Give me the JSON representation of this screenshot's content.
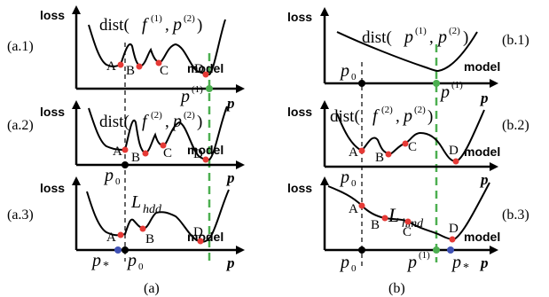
{
  "axes": {
    "y_label": "loss",
    "x_label": "model",
    "x_symbol": "p"
  },
  "colors": {
    "curve": "#000000",
    "point_red": "#e53935",
    "point_black": "#000000",
    "point_green": "#4caf50",
    "point_blue": "#3f51b5",
    "guide_green": "#4caf50"
  },
  "panels": {
    "a1": {
      "tag": "(a.1)",
      "dist_label": "dist(",
      "dist_f": "f",
      "dist_f_sup": "(1)",
      "dist_sep": ", ",
      "dist_p": "p",
      "dist_p_sup": "(2)",
      "dist_close": ")"
    },
    "a2": {
      "tag": "(a.2)",
      "dist_label": "dist(",
      "dist_f": "f",
      "dist_f_sup": "(2)",
      "dist_sep": ", ",
      "dist_p": "p",
      "dist_p_sup": "(2)",
      "dist_close": ")"
    },
    "a3": {
      "tag": "(a.3)",
      "loss_symbol": "L",
      "loss_sub": "hdd"
    },
    "b1": {
      "tag": "(b.1)",
      "dist_label": "dist(",
      "dist_f": "p",
      "dist_f_sup": "(1)",
      "dist_sep": ", ",
      "dist_p": "p",
      "dist_p_sup": "(2)",
      "dist_close": ")"
    },
    "b2": {
      "tag": "(b.2)",
      "dist_label": "dist(",
      "dist_f": "f",
      "dist_f_sup": "(2)",
      "dist_sep": ", ",
      "dist_p": "p",
      "dist_p_sup": "(2)",
      "dist_close": ")"
    },
    "b3": {
      "tag": "(b.3)",
      "loss_symbol": "L",
      "loss_sub": "hmd"
    }
  },
  "points": {
    "A": "A",
    "B": "B",
    "C": "C",
    "D": "D"
  },
  "markers": {
    "p0": "p",
    "p0_sub": "0",
    "p1": "p",
    "p1_sup": "(1)",
    "pstar": "p",
    "pstar_sub": "*"
  },
  "captions": {
    "a": "(a)",
    "b": "(b)"
  }
}
